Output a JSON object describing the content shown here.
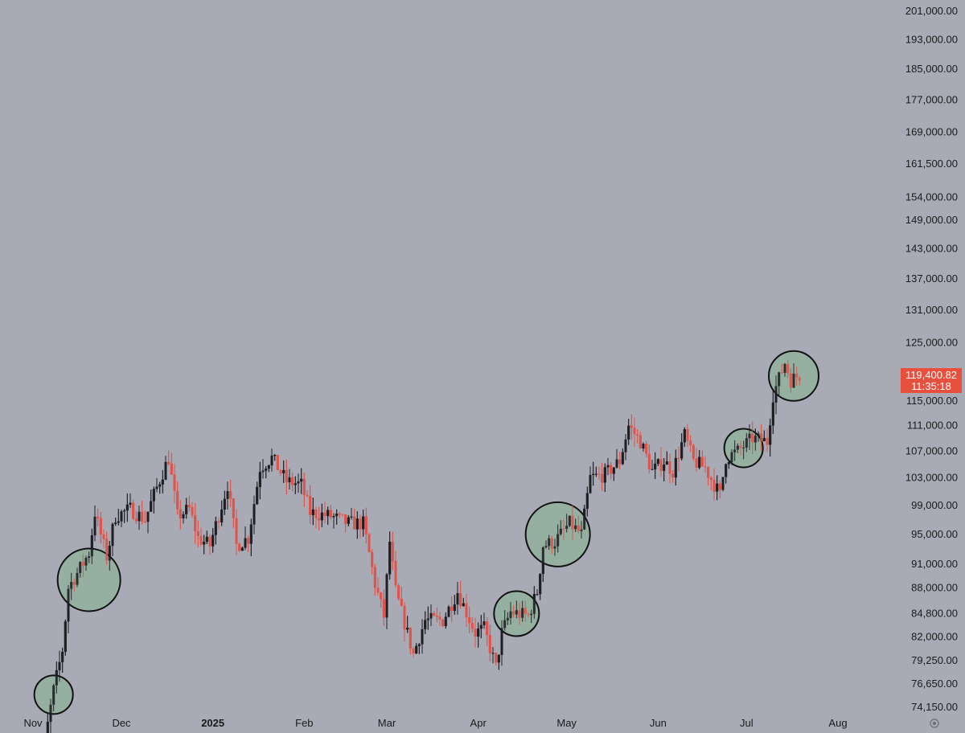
{
  "chart_data": {
    "type": "candlestick",
    "scale": "log",
    "ylim": [
      73500,
      205000
    ],
    "x_range": [
      "2024-11-01",
      "2025-08-05"
    ],
    "y_ticks": [
      "201,000.00",
      "193,000.00",
      "185,000.00",
      "177,000.00",
      "169,000.00",
      "161,500.00",
      "154,000.00",
      "149,000.00",
      "143,000.00",
      "137,000.00",
      "131,000.00",
      "125,000.00",
      "115,000.00",
      "111,000.00",
      "107,000.00",
      "103,000.00",
      "99,000.00",
      "95,000.00",
      "91,000.00",
      "88,000.00",
      "84,800.00",
      "82,000.00",
      "79,250.00",
      "76,650.00",
      "74,150.00"
    ],
    "x_ticks": [
      {
        "label": "Nov",
        "date": "2024-11-01",
        "bold": false
      },
      {
        "label": "Dec",
        "date": "2024-12-01",
        "bold": false
      },
      {
        "label": "2025",
        "date": "2025-01-01",
        "bold": true
      },
      {
        "label": "Feb",
        "date": "2025-02-01",
        "bold": false
      },
      {
        "label": "Mar",
        "date": "2025-03-01",
        "bold": false
      },
      {
        "label": "Apr",
        "date": "2025-04-01",
        "bold": false
      },
      {
        "label": "May",
        "date": "2025-05-01",
        "bold": false
      },
      {
        "label": "Jun",
        "date": "2025-06-01",
        "bold": false
      },
      {
        "label": "Jul",
        "date": "2025-07-01",
        "bold": false
      },
      {
        "label": "Aug",
        "date": "2025-08-01",
        "bold": false
      }
    ],
    "current_price": {
      "value": 119400.82,
      "label": "119,400.82",
      "countdown": "11:35:18"
    },
    "colors": {
      "up": "#1e1e24",
      "down": "#e05349",
      "background": "#a8abb5",
      "highlight_fill": "#8fb09a",
      "highlight_stroke": "#111111",
      "price_box": "#e8503e"
    },
    "close_path": [
      {
        "date": "2024-11-01",
        "close": 69500
      },
      {
        "date": "2024-11-05",
        "close": 70500
      },
      {
        "date": "2024-11-08",
        "close": 76000
      },
      {
        "date": "2024-11-11",
        "close": 80500
      },
      {
        "date": "2024-11-13",
        "close": 88000
      },
      {
        "date": "2024-11-17",
        "close": 90500
      },
      {
        "date": "2024-11-20",
        "close": 92500
      },
      {
        "date": "2024-11-22",
        "close": 98000
      },
      {
        "date": "2024-11-26",
        "close": 92000
      },
      {
        "date": "2024-11-29",
        "close": 97500
      },
      {
        "date": "2024-12-04",
        "close": 98500
      },
      {
        "date": "2024-12-09",
        "close": 97000
      },
      {
        "date": "2024-12-12",
        "close": 100500
      },
      {
        "date": "2024-12-17",
        "close": 106000
      },
      {
        "date": "2024-12-20",
        "close": 97500
      },
      {
        "date": "2024-12-24",
        "close": 98500
      },
      {
        "date": "2024-12-27",
        "close": 94500
      },
      {
        "date": "2024-12-31",
        "close": 93500
      },
      {
        "date": "2025-01-06",
        "close": 102000
      },
      {
        "date": "2025-01-09",
        "close": 93500
      },
      {
        "date": "2025-01-13",
        "close": 94500
      },
      {
        "date": "2025-01-17",
        "close": 104500
      },
      {
        "date": "2025-01-21",
        "close": 106000
      },
      {
        "date": "2025-01-26",
        "close": 102500
      },
      {
        "date": "2025-01-31",
        "close": 102000
      },
      {
        "date": "2025-02-03",
        "close": 98000
      },
      {
        "date": "2025-02-10",
        "close": 97500
      },
      {
        "date": "2025-02-16",
        "close": 96500
      },
      {
        "date": "2025-02-21",
        "close": 96500
      },
      {
        "date": "2025-02-25",
        "close": 88500
      },
      {
        "date": "2025-02-28",
        "close": 84500
      },
      {
        "date": "2025-03-02",
        "close": 94000
      },
      {
        "date": "2025-03-04",
        "close": 87500
      },
      {
        "date": "2025-03-10",
        "close": 80000
      },
      {
        "date": "2025-03-14",
        "close": 84000
      },
      {
        "date": "2025-03-20",
        "close": 84000
      },
      {
        "date": "2025-03-25",
        "close": 87500
      },
      {
        "date": "2025-03-31",
        "close": 82500
      },
      {
        "date": "2025-04-03",
        "close": 83000
      },
      {
        "date": "2025-04-07",
        "close": 78500
      },
      {
        "date": "2025-04-09",
        "close": 82500
      },
      {
        "date": "2025-04-12",
        "close": 85000
      },
      {
        "date": "2025-04-18",
        "close": 84500
      },
      {
        "date": "2025-04-21",
        "close": 87500
      },
      {
        "date": "2025-04-23",
        "close": 93500
      },
      {
        "date": "2025-04-27",
        "close": 94000
      },
      {
        "date": "2025-05-02",
        "close": 96500
      },
      {
        "date": "2025-05-06",
        "close": 95000
      },
      {
        "date": "2025-05-09",
        "close": 103000
      },
      {
        "date": "2025-05-14",
        "close": 103500
      },
      {
        "date": "2025-05-19",
        "close": 105500
      },
      {
        "date": "2025-05-22",
        "close": 111000
      },
      {
        "date": "2025-05-26",
        "close": 108500
      },
      {
        "date": "2025-05-30",
        "close": 104000
      },
      {
        "date": "2025-06-03",
        "close": 105500
      },
      {
        "date": "2025-06-06",
        "close": 104000
      },
      {
        "date": "2025-06-10",
        "close": 109500
      },
      {
        "date": "2025-06-13",
        "close": 105500
      },
      {
        "date": "2025-06-17",
        "close": 104500
      },
      {
        "date": "2025-06-22",
        "close": 100500
      },
      {
        "date": "2025-06-24",
        "close": 106000
      },
      {
        "date": "2025-06-28",
        "close": 107000
      },
      {
        "date": "2025-07-03",
        "close": 109000
      },
      {
        "date": "2025-07-08",
        "close": 108500
      },
      {
        "date": "2025-07-10",
        "close": 116000
      },
      {
        "date": "2025-07-14",
        "close": 121500
      },
      {
        "date": "2025-07-16",
        "close": 118500
      },
      {
        "date": "2025-07-19",
        "close": 119400
      }
    ],
    "highlights": [
      {
        "date": "2024-11-08",
        "price": 75500,
        "radius": 24
      },
      {
        "date": "2024-11-20",
        "price": 89000,
        "radius": 39
      },
      {
        "date": "2025-04-14",
        "price": 84800,
        "radius": 28
      },
      {
        "date": "2025-04-28",
        "price": 95000,
        "radius": 40
      },
      {
        "date": "2025-06-30",
        "price": 107500,
        "radius": 24
      },
      {
        "date": "2025-07-17",
        "price": 119200,
        "radius": 31
      }
    ]
  }
}
